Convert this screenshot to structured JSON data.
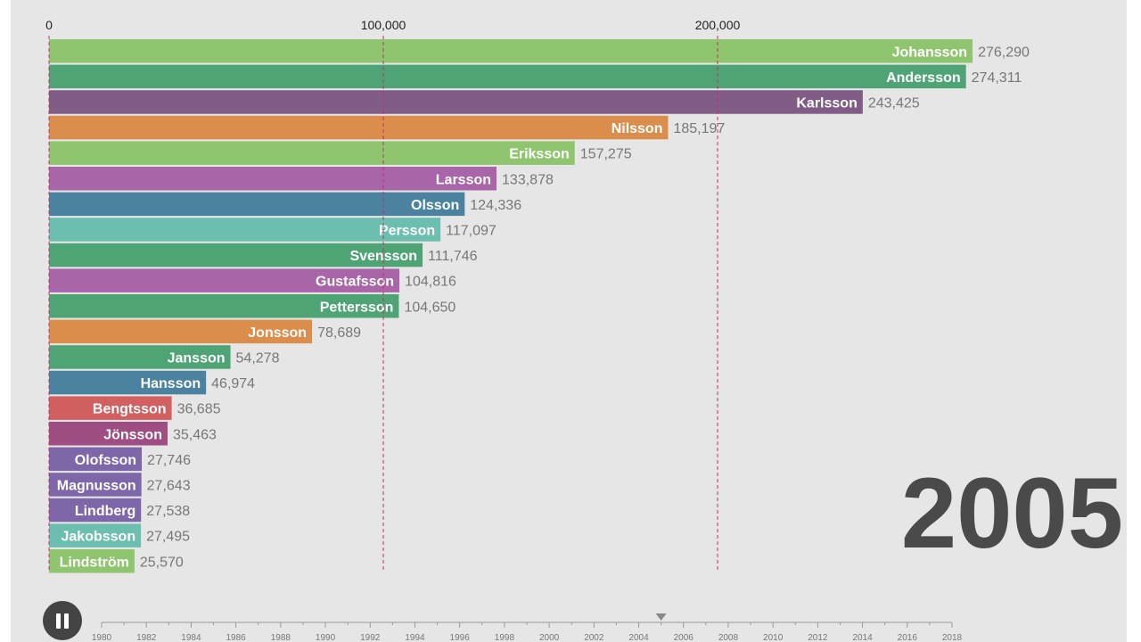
{
  "chart_data": {
    "type": "bar",
    "orientation": "horizontal",
    "title": "",
    "year": "2005",
    "xlim": [
      0,
      300000
    ],
    "xticks": [
      0,
      100000,
      200000
    ],
    "xtick_labels": [
      "0",
      "100,000",
      "200,000"
    ],
    "categories": [
      "Johansson",
      "Andersson",
      "Karlsson",
      "Nilsson",
      "Eriksson",
      "Larsson",
      "Olsson",
      "Persson",
      "Svensson",
      "Gustafsson",
      "Pettersson",
      "Jonsson",
      "Jansson",
      "Hansson",
      "Bengtsson",
      "Jönsson",
      "Olofsson",
      "Magnusson",
      "Lindberg",
      "Jakobsson",
      "Lindström"
    ],
    "values": [
      276290,
      274311,
      243425,
      185197,
      157275,
      133878,
      124336,
      117097,
      111746,
      104816,
      104650,
      78689,
      54278,
      46974,
      36685,
      35463,
      27746,
      27643,
      27538,
      27495,
      25570
    ],
    "value_labels": [
      "276,290",
      "274,311",
      "243,425",
      "185,197",
      "157,275",
      "133,878",
      "124,336",
      "117,097",
      "111,746",
      "104,816",
      "104,650",
      "78,689",
      "54,278",
      "46,974",
      "36,685",
      "35,463",
      "27,746",
      "27,643",
      "27,538",
      "27,495",
      "25,570"
    ],
    "colors": [
      "#8fc56e",
      "#4fa476",
      "#815c86",
      "#db8d4c",
      "#8fc56e",
      "#a865a8",
      "#4a82a0",
      "#6cbfae",
      "#4fa476",
      "#a865a8",
      "#4fa476",
      "#db8d4c",
      "#4fa476",
      "#4a82a0",
      "#d26060",
      "#9e4e82",
      "#7e67a8",
      "#7e67a8",
      "#7e67a8",
      "#6cbfae",
      "#8fc56e"
    ],
    "gridline_color": "#c0306a",
    "timeline": {
      "start": 1980,
      "end": 2018,
      "current": 2005,
      "labels": [
        "1980",
        "1982",
        "1984",
        "1986",
        "1988",
        "1990",
        "1992",
        "1994",
        "1996",
        "1998",
        "2000",
        "2002",
        "2004",
        "2006",
        "2008",
        "2010",
        "2012",
        "2014",
        "2016",
        "2018"
      ]
    }
  },
  "controls": {
    "play_state_icon": "pause-icon"
  }
}
